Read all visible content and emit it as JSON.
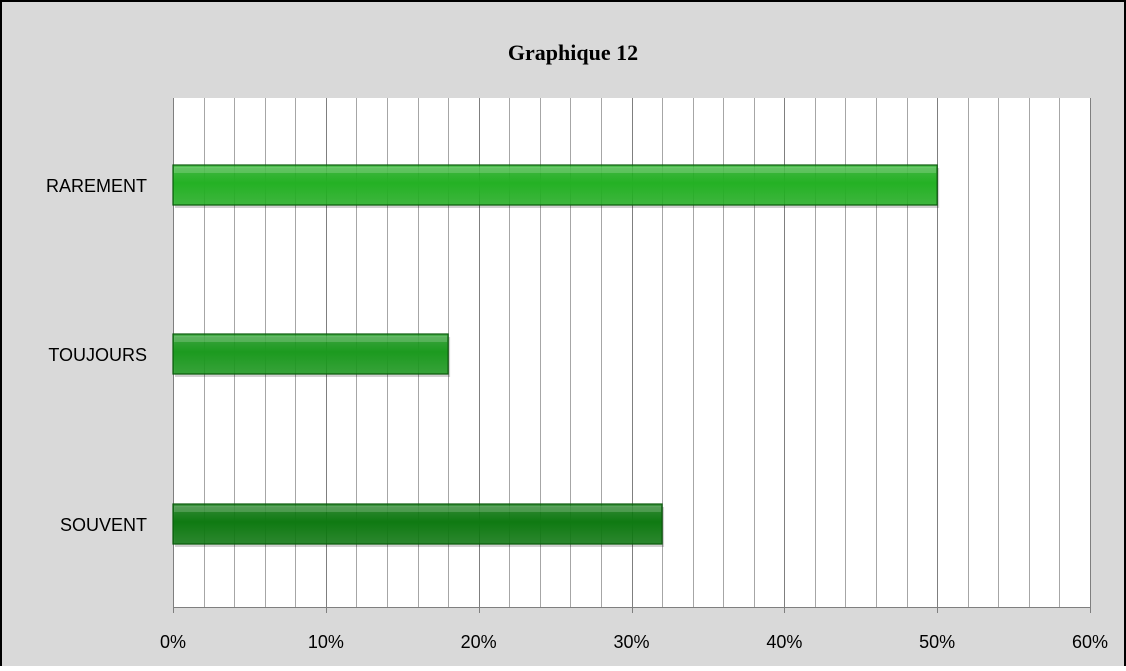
{
  "chart_data": {
    "type": "bar",
    "orientation": "horizontal",
    "title": "Graphique 12",
    "categories": [
      "SOUVENT",
      "TOUJOURS",
      "RAREMENT"
    ],
    "values": [
      0.32,
      0.18,
      0.5
    ],
    "xlim": [
      0,
      0.6
    ],
    "x_ticks": [
      "0%",
      "10%",
      "20%",
      "30%",
      "40%",
      "50%",
      "60%"
    ],
    "xlabel": "",
    "ylabel": "",
    "grid": "vertical",
    "legend": "none",
    "colors": {
      "SOUVENT": "#0f7a12",
      "TOUJOURS": "#1c9a1f",
      "RAREMENT": "#24b124",
      "background": "#d9d9d9",
      "plot_background": "#ffffff",
      "gridline": "#8c8c8c"
    }
  }
}
